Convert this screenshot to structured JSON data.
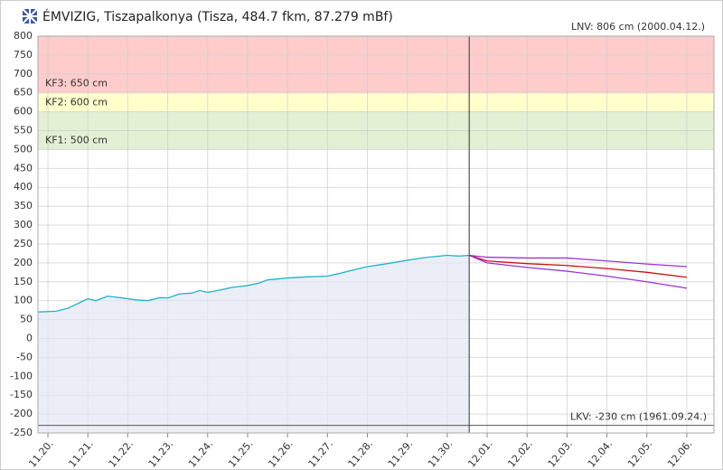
{
  "chart_data": {
    "type": "line",
    "title": "ÉMVIZIG, Tiszapalkonya (Tisza, 484.7 fkm, 87.279 mBf)",
    "xlim": [
      19.75,
      36.68
    ],
    "xticks": [
      {
        "value": 20,
        "label": "11.20."
      },
      {
        "value": 21,
        "label": "11.21."
      },
      {
        "value": 22,
        "label": "11.22."
      },
      {
        "value": 23,
        "label": "11.23."
      },
      {
        "value": 24,
        "label": "11.24."
      },
      {
        "value": 25,
        "label": "11.25."
      },
      {
        "value": 26,
        "label": "11.26."
      },
      {
        "value": 27,
        "label": "11.27."
      },
      {
        "value": 28,
        "label": "11.28."
      },
      {
        "value": 29,
        "label": "11.29."
      },
      {
        "value": 30,
        "label": "11.30."
      },
      {
        "value": 31,
        "label": "12.01."
      },
      {
        "value": 32,
        "label": "12.02."
      },
      {
        "value": 33,
        "label": "12.03."
      },
      {
        "value": 34,
        "label": "12.04."
      },
      {
        "value": 35,
        "label": "12.05."
      },
      {
        "value": 36,
        "label": "12.06."
      }
    ],
    "ylim": [
      -250,
      800
    ],
    "yticks": [
      800,
      750,
      700,
      650,
      600,
      550,
      500,
      450,
      400,
      350,
      300,
      250,
      200,
      150,
      100,
      50,
      0,
      -50,
      -100,
      -150,
      -200,
      -250
    ],
    "grid": true,
    "bands": [
      {
        "value": 650,
        "label": "KF3: 650 cm",
        "color": "#ffcccc"
      },
      {
        "value": 600,
        "label": "KF2: 600 cm",
        "color": "#ffffcc"
      },
      {
        "value": 500,
        "label": "KF1: 500 cm",
        "color": "#e3f0d3"
      }
    ],
    "lnv_label": "LNV: 806 cm (2000.04.12.)",
    "lkv": {
      "value": -230,
      "label": "LKV: -230 cm (1961.09.24.)"
    },
    "now_x": 30.55,
    "series": [
      {
        "color": "#1fb3cc",
        "area": true,
        "x": [
          19.75,
          20.2,
          20.5,
          20.8,
          21.0,
          21.2,
          21.5,
          21.8,
          22.2,
          22.5,
          22.8,
          23.0,
          23.3,
          23.6,
          23.8,
          24.0,
          24.3,
          24.6,
          25.0,
          25.3,
          25.5,
          26.0,
          26.5,
          27.0,
          27.3,
          27.6,
          28.0,
          28.5,
          29.0,
          29.5,
          30.0,
          30.3,
          30.55
        ],
        "values": [
          70,
          72,
          80,
          95,
          105,
          100,
          112,
          108,
          102,
          100,
          108,
          107,
          118,
          120,
          127,
          122,
          128,
          135,
          140,
          147,
          155,
          160,
          163,
          165,
          172,
          180,
          190,
          198,
          207,
          215,
          220,
          218,
          220
        ]
      },
      {
        "color": "#9933dd",
        "x": [
          30.55,
          31,
          32,
          33,
          34,
          35,
          36
        ],
        "values": [
          220,
          215,
          213,
          213,
          205,
          197,
          190
        ]
      },
      {
        "color": "#cc1111",
        "x": [
          30.55,
          31,
          32,
          33,
          34,
          35,
          36
        ],
        "values": [
          220,
          205,
          198,
          193,
          185,
          175,
          162
        ]
      },
      {
        "color": "#9933dd",
        "x": [
          30.55,
          31,
          32,
          33,
          34,
          35,
          36
        ],
        "values": [
          220,
          200,
          188,
          178,
          165,
          150,
          133
        ]
      }
    ]
  }
}
